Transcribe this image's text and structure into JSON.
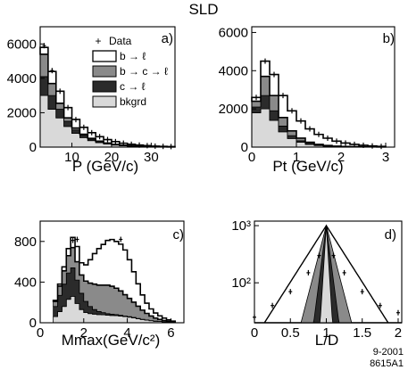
{
  "figure": {
    "title": "SLD",
    "footer_line1": "9-2001",
    "footer_line2": "8615A1"
  },
  "colors": {
    "b_to_l": "#ffffff",
    "b_to_c_to_l": "#8a8a8a",
    "c_to_l": "#2b2b2b",
    "bkgrd": "#d9d9d9",
    "outline": "#000000"
  },
  "legend": {
    "data": "Data",
    "b_to_l": "b → ℓ",
    "b_to_c_to_l": "b → c → ℓ",
    "c_to_l": "c → ℓ",
    "bkgrd": "bkgrd"
  },
  "chart_data": [
    {
      "type": "area",
      "panel": "a)",
      "xlabel": "P  (GeV/c)",
      "ylabel": "",
      "xlim": [
        2,
        36
      ],
      "ylim": [
        0,
        7000
      ],
      "xticks": [
        10,
        20,
        30
      ],
      "yticks": [
        0,
        2000,
        4000,
        6000
      ],
      "bin_edges": [
        2,
        4,
        6,
        8,
        10,
        12,
        14,
        16,
        18,
        20,
        22,
        24,
        26,
        28,
        30,
        32,
        34,
        36
      ],
      "series": [
        {
          "name": "bkgrd",
          "values": [
            3000,
            2200,
            1700,
            1200,
            800,
            550,
            380,
            260,
            180,
            120,
            80,
            55,
            35,
            25,
            15,
            10,
            8
          ]
        },
        {
          "name": "c → ℓ",
          "values": [
            1100,
            800,
            500,
            300,
            200,
            130,
            90,
            60,
            40,
            30,
            20,
            15,
            10,
            8,
            5,
            4,
            3
          ]
        },
        {
          "name": "b → c → ℓ",
          "values": [
            1300,
            700,
            350,
            200,
            110,
            70,
            40,
            25,
            15,
            10,
            7,
            5,
            3,
            2,
            2,
            1,
            1
          ]
        },
        {
          "name": "b → ℓ",
          "values": [
            400,
            700,
            700,
            600,
            500,
            400,
            330,
            260,
            200,
            160,
            120,
            90,
            70,
            50,
            35,
            25,
            18
          ]
        }
      ],
      "data_points": {
        "x": [
          3,
          5,
          7,
          9,
          11,
          13,
          15,
          17,
          19,
          21,
          23,
          25,
          27,
          29,
          31,
          33,
          35
        ],
        "y": [
          5900,
          4450,
          3250,
          2300,
          1600,
          1150,
          840,
          610,
          440,
          320,
          230,
          165,
          120,
          85,
          58,
          41,
          30
        ]
      }
    },
    {
      "type": "area",
      "panel": "b)",
      "xlabel": "Pt  (GeV/c)",
      "ylabel": "",
      "xlim": [
        0,
        3.2
      ],
      "ylim": [
        0,
        6300
      ],
      "xticks": [
        0,
        1,
        2,
        3
      ],
      "yticks": [
        0,
        2000,
        4000,
        6000
      ],
      "bin_edges": [
        0,
        0.2,
        0.4,
        0.6,
        0.8,
        1.0,
        1.2,
        1.4,
        1.6,
        1.8,
        2.0,
        2.2,
        2.4,
        2.6,
        2.8,
        3.0
      ],
      "series": [
        {
          "name": "bkgrd",
          "values": [
            1800,
            2000,
            1400,
            800,
            450,
            250,
            140,
            80,
            50,
            30,
            20,
            15,
            10,
            8,
            5
          ]
        },
        {
          "name": "c → ℓ",
          "values": [
            300,
            700,
            500,
            300,
            150,
            80,
            45,
            25,
            15,
            10,
            7,
            5,
            3,
            2,
            1
          ]
        },
        {
          "name": "b → c → ℓ",
          "values": [
            300,
            1000,
            800,
            450,
            250,
            140,
            70,
            40,
            22,
            12,
            8,
            5,
            3,
            2,
            1
          ]
        },
        {
          "name": "b → ℓ",
          "values": [
            200,
            800,
            1100,
            1150,
            1050,
            900,
            700,
            520,
            380,
            260,
            180,
            120,
            80,
            50,
            30
          ]
        }
      ],
      "data_points": {
        "x": [
          0.1,
          0.3,
          0.5,
          0.7,
          0.9,
          1.1,
          1.3,
          1.5,
          1.7,
          1.9,
          2.1,
          2.3,
          2.5,
          2.7,
          2.9
        ],
        "y": [
          2600,
          4500,
          3800,
          2700,
          1900,
          1370,
          955,
          665,
          467,
          312,
          215,
          145,
          96,
          62,
          37
        ]
      }
    },
    {
      "type": "area",
      "panel": "c)",
      "xlabel": "Mmax(GeV/c²)",
      "ylabel": "",
      "xlim": [
        0,
        6.6
      ],
      "ylim": [
        0,
        1000
      ],
      "xticks": [
        0,
        2,
        4,
        6
      ],
      "yticks": [
        0,
        400,
        800
      ],
      "bin_edges": [
        0.6,
        0.8,
        1.0,
        1.2,
        1.4,
        1.6,
        1.8,
        2.0,
        2.2,
        2.4,
        2.6,
        2.8,
        3.0,
        3.2,
        3.4,
        3.6,
        3.8,
        4.0,
        4.2,
        4.4,
        4.6,
        4.8,
        5.0,
        5.2,
        5.4,
        5.6,
        5.8,
        6.0,
        6.2
      ],
      "series": [
        {
          "name": "bkgrd",
          "values": [
            60,
            110,
            160,
            230,
            260,
            190,
            130,
            100,
            90,
            85,
            80,
            78,
            75,
            72,
            70,
            65,
            60,
            55,
            48,
            40,
            32,
            25,
            20,
            15,
            12,
            8,
            5,
            3
          ]
        },
        {
          "name": "c → ℓ",
          "values": [
            100,
            160,
            220,
            260,
            280,
            230,
            160,
            110,
            70,
            45,
            30,
            22,
            15,
            12,
            10,
            8,
            6,
            5,
            4,
            3,
            2,
            2,
            1,
            1,
            1,
            1,
            0,
            0
          ]
        },
        {
          "name": "b → c → ℓ",
          "values": [
            50,
            90,
            130,
            170,
            200,
            180,
            180,
            200,
            230,
            250,
            260,
            270,
            280,
            275,
            260,
            240,
            210,
            180,
            150,
            120,
            90,
            65,
            45,
            30,
            20,
            12,
            8,
            5
          ]
        },
        {
          "name": "b → ℓ",
          "values": [
            10,
            20,
            40,
            70,
            100,
            150,
            120,
            160,
            230,
            300,
            360,
            400,
            440,
            460,
            460,
            460,
            440,
            380,
            300,
            220,
            150,
            100,
            70,
            50,
            35,
            25,
            15,
            8
          ]
        }
      ],
      "data_points": {
        "x": [
          1.5,
          1.7,
          3.7
        ],
        "y": [
          810,
          820,
          820
        ]
      }
    },
    {
      "type": "area",
      "panel": "d)",
      "xlabel": "L/D",
      "ylabel": "",
      "yscale": "log",
      "xlim": [
        0,
        2.05
      ],
      "ylim": [
        20,
        1200
      ],
      "xticks": [
        0,
        0.5,
        1,
        1.5,
        2
      ],
      "ytick_labels": [
        "10²",
        "10³"
      ],
      "ytick_values": [
        100,
        1000
      ],
      "series": [
        {
          "name": "bkgrd",
          "peak": 1000
        },
        {
          "name": "c → ℓ",
          "peak": 1000
        },
        {
          "name": "b → c → ℓ",
          "peak": 1000
        },
        {
          "name": "b → ℓ",
          "peak": 1000
        }
      ],
      "data_points": {
        "x": [
          0,
          0.25,
          0.5,
          0.75,
          0.9,
          1.0,
          1.1,
          1.25,
          1.5,
          1.75,
          2.0
        ],
        "y": [
          25,
          40,
          70,
          150,
          300,
          900,
          300,
          150,
          70,
          40,
          30
        ]
      }
    }
  ]
}
